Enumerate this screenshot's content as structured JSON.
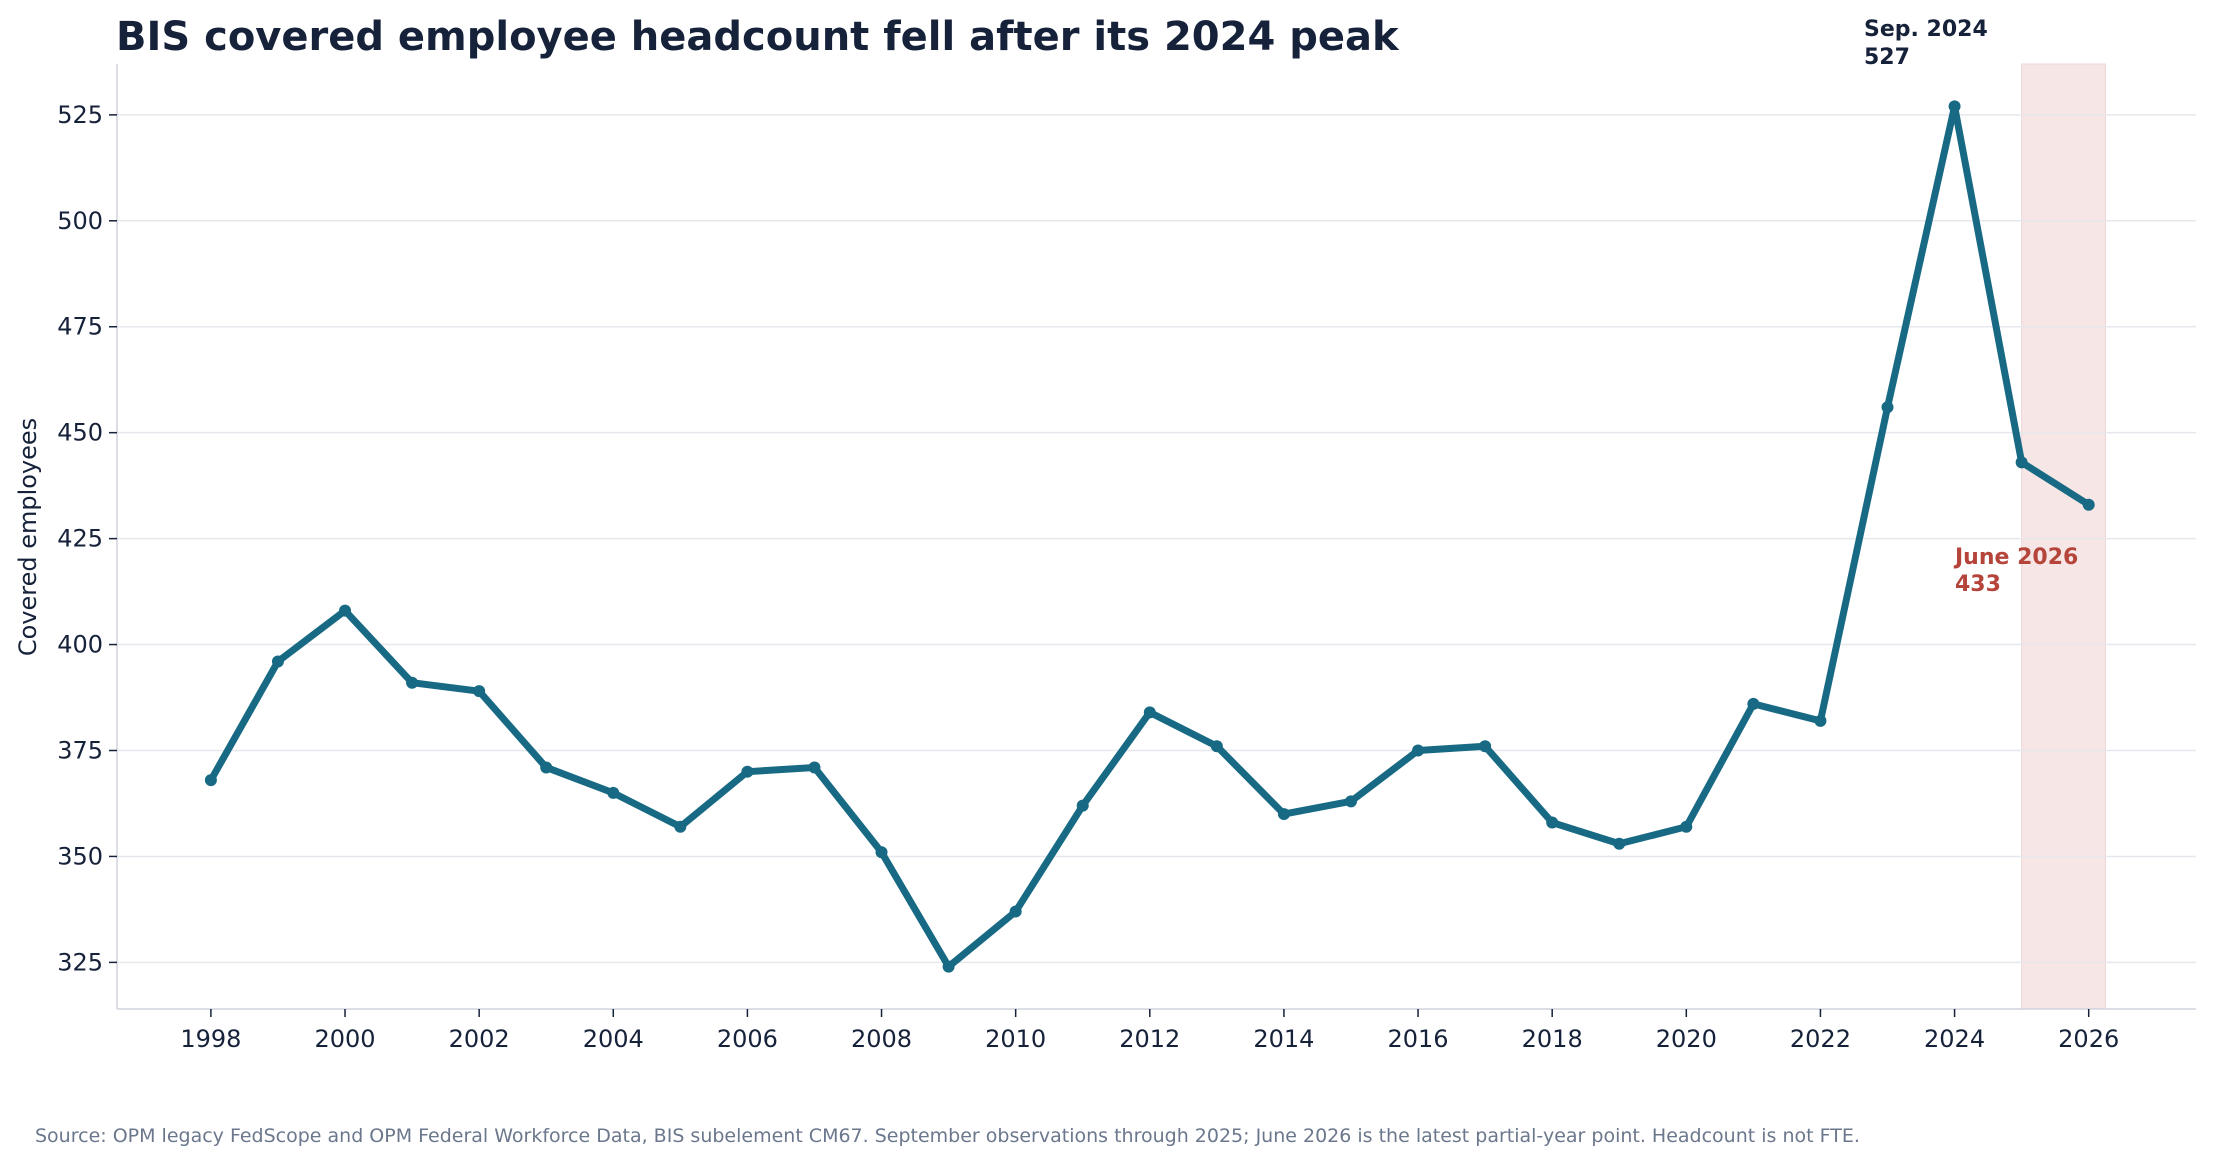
{
  "chart_data": {
    "type": "line",
    "title": "BIS covered employee headcount fell after its 2024 peak",
    "xlabel": "",
    "ylabel": "Covered employees",
    "x": [
      1998,
      1999,
      2000,
      2001,
      2002,
      2003,
      2004,
      2005,
      2006,
      2007,
      2008,
      2009,
      2010,
      2011,
      2012,
      2013,
      2014,
      2015,
      2016,
      2017,
      2018,
      2019,
      2020,
      2021,
      2022,
      2023,
      2024,
      2025,
      2026
    ],
    "series": [
      {
        "name": "",
        "values": [
          368,
          396,
          408,
          391,
          389,
          371,
          365,
          357,
          370,
          371,
          351,
          324,
          337,
          362,
          384,
          376,
          360,
          363,
          375,
          376,
          358,
          353,
          357,
          386,
          382,
          456,
          527,
          443,
          433
        ]
      }
    ],
    "x_ticks": [
      1998,
      2000,
      2002,
      2004,
      2006,
      2008,
      2010,
      2012,
      2014,
      2016,
      2018,
      2020,
      2022,
      2024,
      2026
    ],
    "y_ticks": [
      325,
      350,
      375,
      400,
      425,
      450,
      475,
      500,
      525
    ],
    "xlim": [
      1996.6,
      2027.6
    ],
    "ylim": [
      314,
      537
    ],
    "grid": "horizontal",
    "legend": "none",
    "highlight_band": [
      2025,
      2026.25
    ],
    "annotations": [
      {
        "line1": "Sep. 2024",
        "line2": "527",
        "x": 2024,
        "y": 527,
        "style": "peak"
      },
      {
        "line1": "June 2026",
        "line2": "433",
        "x": 2026,
        "y": 433,
        "style": "latest"
      }
    ],
    "source": "Source: OPM legacy FedScope and OPM Federal Workforce Data, BIS subelement CM67. September observations through 2025; June 2026 is the latest partial-year point. Headcount is not FTE.",
    "colors": {
      "line": "#186a84",
      "band": "#f6e6e6",
      "title": "#16213a",
      "latest_annotation": "#b5443a",
      "source": "#6b778c"
    }
  }
}
